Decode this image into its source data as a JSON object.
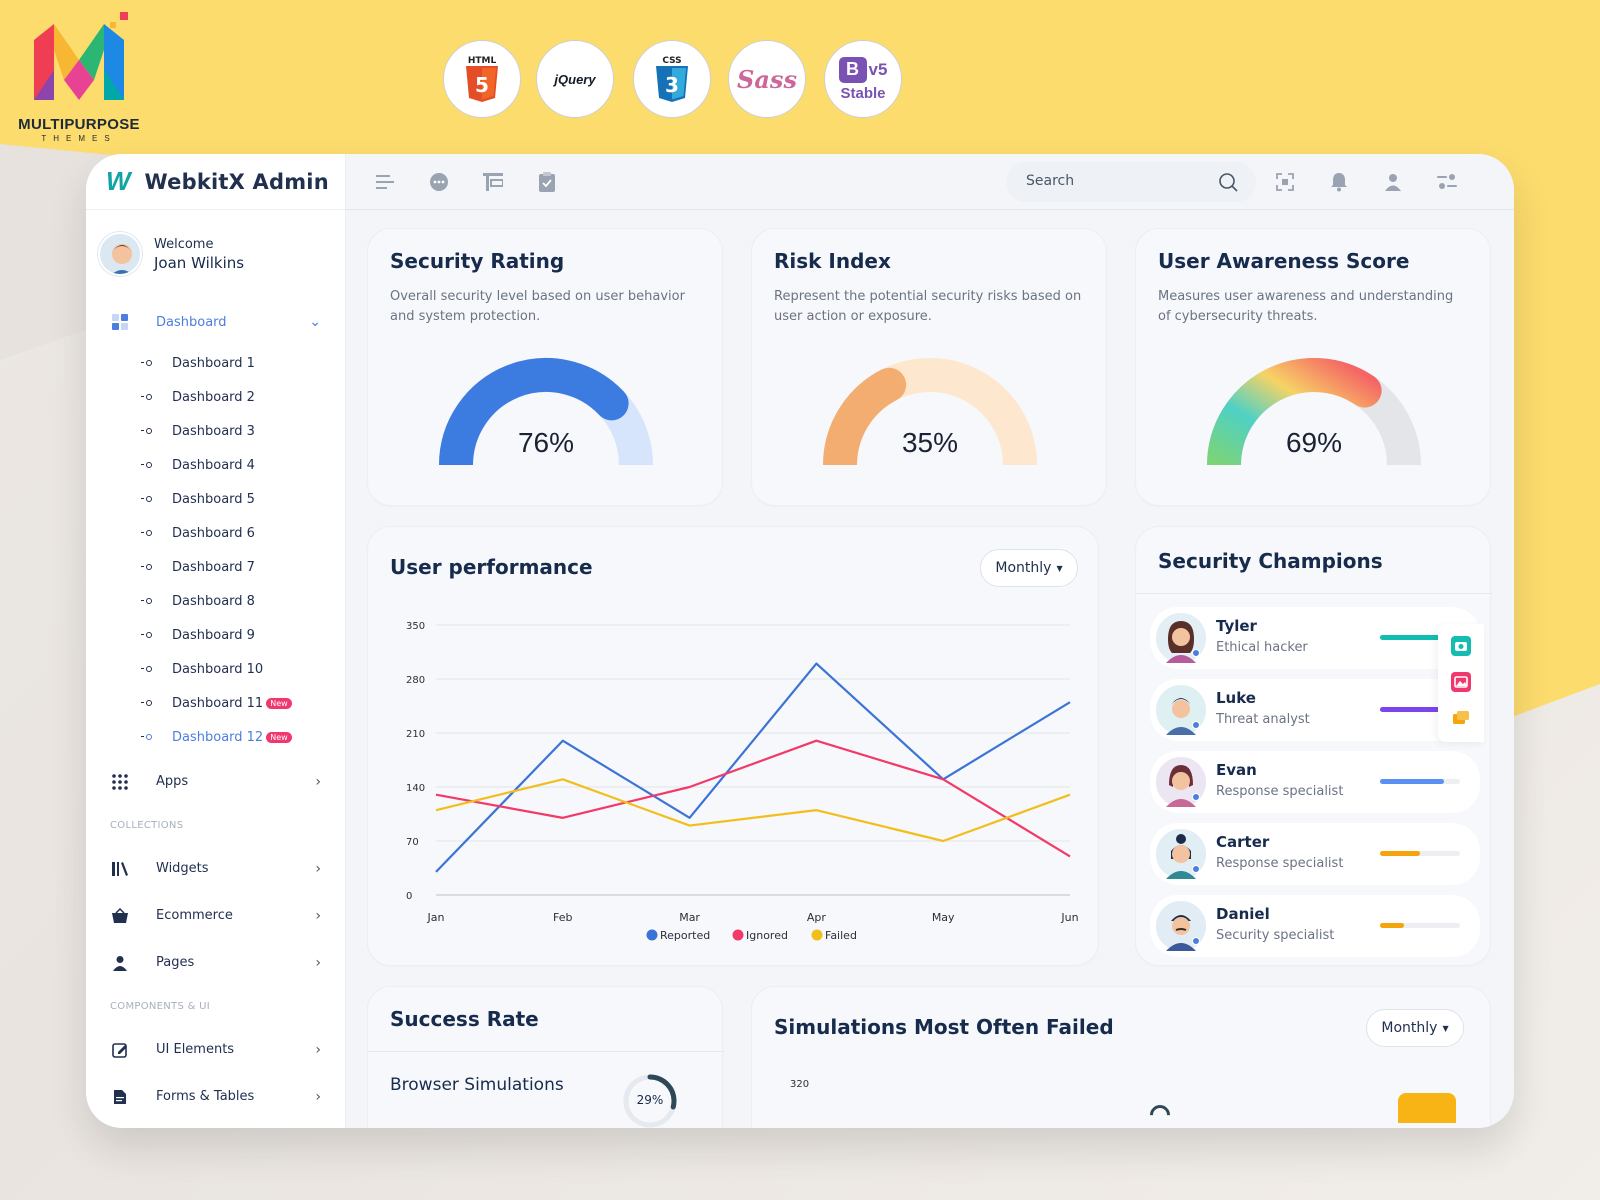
{
  "brand": {
    "name": "MULTIPURPOSE",
    "sub": "THEMES"
  },
  "tech_badges": [
    {
      "name": "html5-icon",
      "label": "HTML"
    },
    {
      "name": "jquery-icon",
      "label": "jQuery"
    },
    {
      "name": "css3-icon",
      "label": "CSS"
    },
    {
      "name": "sass-icon",
      "label": "Sass"
    },
    {
      "name": "bootstrap-icon",
      "label": "v5",
      "sub": "Stable"
    }
  ],
  "app": {
    "logo": "WebkitX Admin",
    "user": {
      "greeting": "Welcome",
      "name": "Joan Wilkins"
    },
    "nav": {
      "dashboard": "Dashboard",
      "dashboards": [
        "Dashboard 1",
        "Dashboard 2",
        "Dashboard 3",
        "Dashboard 4",
        "Dashboard 5",
        "Dashboard 6",
        "Dashboard 7",
        "Dashboard 8",
        "Dashboard 9",
        "Dashboard 10",
        "Dashboard 11",
        "Dashboard 12"
      ],
      "new_badge": "New",
      "apps": "Apps",
      "collections_caption": "COLLECTIONS",
      "widgets": "Widgets",
      "ecommerce": "Ecommerce",
      "pages": "Pages",
      "components_caption": "COMPONENTS & UI",
      "ui_elements": "UI Elements",
      "forms_tables": "Forms & Tables"
    },
    "search_placeholder": "Search",
    "security_rating": {
      "title": "Security Rating",
      "desc": "Overall security level based on user behavior and system protection.",
      "value": 76,
      "display": "76%",
      "color": "#3c7be0",
      "track": "#d6e5fb"
    },
    "risk_index": {
      "title": "Risk Index",
      "desc": "Represent the potential security risks based on user action or exposure.",
      "value": 35,
      "display": "35%",
      "color": "#f4ad70",
      "track": "#fde7cf"
    },
    "awareness": {
      "title": "User Awareness Score",
      "desc": "Measures user awareness and understanding of cybersecurity threats.",
      "value": 69,
      "display": "69%",
      "track": "#e4e5e8"
    },
    "user_performance": {
      "title": "User performance",
      "period": "Monthly"
    },
    "champions": {
      "title": "Security Champions",
      "list": [
        {
          "name": "Tyler",
          "role": "Ethical hacker",
          "progress": 0.95,
          "color": "#10bdb0"
        },
        {
          "name": "Luke",
          "role": "Threat analyst",
          "progress": 0.9,
          "color": "#7b44ed"
        },
        {
          "name": "Evan",
          "role": "Response specialist",
          "progress": 0.8,
          "color": "#5b8ff4"
        },
        {
          "name": "Carter",
          "role": "Response specialist",
          "progress": 0.5,
          "color": "#f5a40c"
        },
        {
          "name": "Daniel",
          "role": "Security specialist",
          "progress": 0.3,
          "color": "#f5a40c"
        }
      ]
    },
    "success_rate": {
      "title": "Success Rate",
      "item": "Browser Simulations",
      "value": "29%"
    },
    "simulations": {
      "title": "Simulations Most Often Failed",
      "period": "Monthly",
      "first_tick": "320"
    }
  },
  "chart_data": {
    "type": "line",
    "categories": [
      "Jan",
      "Feb",
      "Mar",
      "Apr",
      "May",
      "Jun"
    ],
    "ylim": [
      0,
      350
    ],
    "yticks": [
      0,
      70,
      140,
      210,
      280,
      350
    ],
    "grid": true,
    "legend": "bottom",
    "series": [
      {
        "name": "Reported",
        "color": "#3b74d6",
        "values": [
          30,
          200,
          100,
          300,
          150,
          250
        ]
      },
      {
        "name": "Ignored",
        "color": "#f23a68",
        "values": [
          130,
          100,
          140,
          200,
          150,
          50
        ]
      },
      {
        "name": "Failed",
        "color": "#f2be1c",
        "values": [
          110,
          150,
          90,
          110,
          70,
          130
        ]
      }
    ]
  }
}
